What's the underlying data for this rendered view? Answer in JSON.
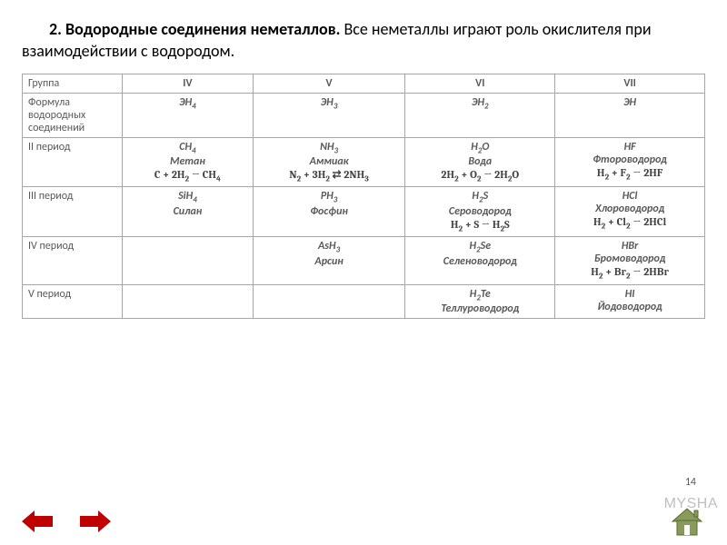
{
  "heading": {
    "bold_part": "2. Водородные соединения неметаллов.",
    "rest": " Все неметаллы играют роль окислителя при взаимодействии с водородом."
  },
  "table": {
    "border_color": "#a6a6a6",
    "text_color": "#595959",
    "column_count": 5,
    "rows": [
      {
        "label": "Группа",
        "cells": [
          "IV",
          "V",
          "VI",
          "VII"
        ],
        "bold": true
      },
      {
        "label": "Формула водородных соединений",
        "cells_html": [
          "ЭН<sub>4</sub>",
          "ЭН<sub>3</sub>",
          "ЭН<sub>2</sub>",
          "ЭН"
        ],
        "bold": true,
        "italic": true
      },
      {
        "label": "II период",
        "cells": [
          {
            "formula": "CH<sub>4</sub>",
            "name": "Метан",
            "eq": "C + 2H<sub>2</sub> → CH<sub>4</sub>"
          },
          {
            "formula": "NH<sub>3</sub>",
            "name": "Аммиак",
            "eq": "N<sub>2</sub> + 3H<sub>2</sub> ⇄ 2NH<sub>3</sub>"
          },
          {
            "formula": "H<sub>2</sub>O",
            "name": "Вода",
            "eq": "2H<sub>2</sub> + O<sub>2</sub> → 2H<sub>2</sub>O"
          },
          {
            "formula": "HF",
            "name": "Фтороводород",
            "eq": "H<sub>2</sub> + F<sub>2</sub> → 2HF"
          }
        ]
      },
      {
        "label": "III период",
        "cells": [
          {
            "formula": "SiH<sub>4</sub>",
            "name": "Силан",
            "eq": ""
          },
          {
            "formula": "PH<sub>3</sub>",
            "name": "Фосфин",
            "eq": ""
          },
          {
            "formula": "H<sub>2</sub>S",
            "name": "Сероводород",
            "eq": "H<sub>2</sub> + S → H<sub>2</sub>S"
          },
          {
            "formula": "HCl",
            "name": "Хлороводород",
            "eq": "H<sub>2</sub> + Cl<sub>2</sub> → 2HCl"
          }
        ]
      },
      {
        "label": "IV период",
        "cells": [
          {
            "formula": "",
            "name": "",
            "eq": ""
          },
          {
            "formula": "AsH<sub>3</sub>",
            "name": "Арсин",
            "eq": ""
          },
          {
            "formula": "H<sub>2</sub>Se",
            "name": "Селеноводород",
            "eq": ""
          },
          {
            "formula": "HBr",
            "name": "Бромоводород",
            "eq": "H<sub>2</sub> + Br<sub>2</sub> → 2HBr"
          }
        ]
      },
      {
        "label": "V период",
        "cells": [
          {
            "formula": "",
            "name": "",
            "eq": ""
          },
          {
            "formula": "",
            "name": "",
            "eq": ""
          },
          {
            "formula": "H<sub>2</sub>Te",
            "name": "Теллуроводород",
            "eq": ""
          },
          {
            "formula": "HI",
            "name": "Йодоводород",
            "eq": ""
          }
        ]
      }
    ]
  },
  "nav": {
    "prev_color": "#c00000",
    "next_color": "#c00000",
    "home_color": "#8a9a5b",
    "home_border": "#556b2f"
  },
  "page_number": "14",
  "watermark": "MYSHA"
}
